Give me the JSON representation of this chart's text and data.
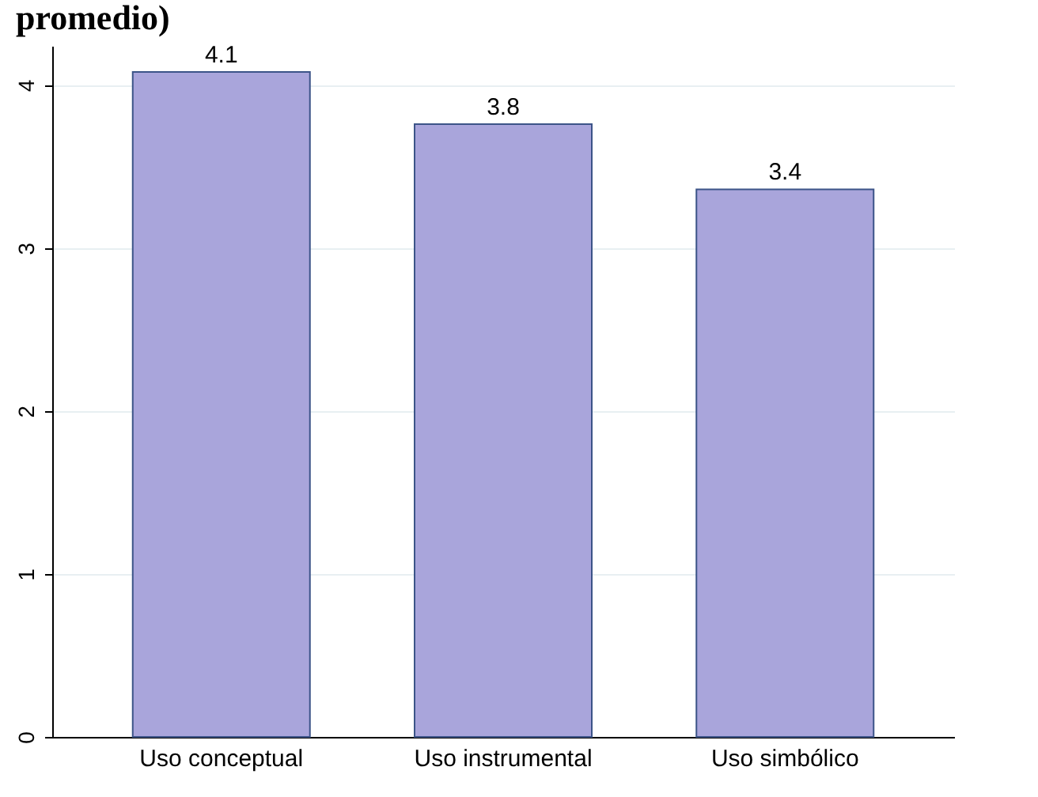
{
  "chart_data": {
    "type": "bar",
    "title": "promedio)",
    "categories": [
      "Uso conceptual",
      "Uso instrumental",
      "Uso simbólico"
    ],
    "values": [
      4.08,
      3.76,
      3.36
    ],
    "value_labels": [
      "4.1",
      "3.8",
      "3.4"
    ],
    "color": "#a9a5db",
    "ylim": [
      0,
      4.24
    ],
    "yticks": [
      0,
      1,
      2,
      3,
      4
    ],
    "grid": "y"
  }
}
